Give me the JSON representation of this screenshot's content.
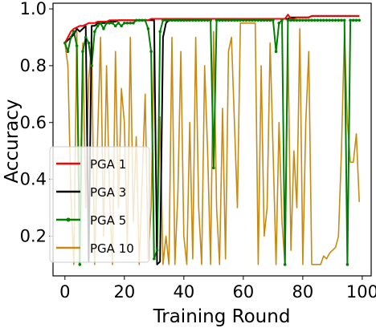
{
  "chart_data": {
    "type": "line",
    "title": "",
    "xlabel": "Training Round",
    "ylabel": "Accuracy",
    "xlim": [
      -4,
      103
    ],
    "ylim": [
      0.06,
      1.02
    ],
    "xticks": [
      0,
      20,
      40,
      60,
      80,
      100
    ],
    "yticks": [
      0.2,
      0.4,
      0.6,
      0.8,
      1.0
    ],
    "xtick_labels": [
      "0",
      "20",
      "40",
      "60",
      "80",
      "100"
    ],
    "ytick_labels": [
      "0.2",
      "0.4",
      "0.6",
      "0.8",
      "1.0"
    ],
    "grid": false,
    "legend": {
      "placement": "lower-left"
    },
    "series": [
      {
        "name": "PGA 1",
        "color": "#ff0000",
        "marker": false,
        "x": [
          0,
          1,
          2,
          3,
          4,
          5,
          6,
          7,
          8,
          9,
          10,
          11,
          12,
          13,
          14,
          15,
          16,
          17,
          18,
          19,
          20,
          21,
          22,
          23,
          24,
          25,
          26,
          27,
          28,
          29,
          30,
          31,
          32,
          33,
          34,
          35,
          36,
          37,
          38,
          39,
          40,
          41,
          42,
          43,
          44,
          45,
          46,
          47,
          48,
          49,
          50,
          51,
          52,
          53,
          54,
          55,
          56,
          57,
          58,
          59,
          60,
          61,
          62,
          63,
          64,
          65,
          66,
          67,
          68,
          69,
          70,
          71,
          72,
          73,
          74,
          75,
          76,
          77,
          78,
          79,
          80,
          81,
          82,
          83,
          84,
          85,
          86,
          87,
          88,
          89,
          90,
          91,
          92,
          93,
          94,
          95,
          96,
          97,
          98,
          99
        ],
        "y": [
          0.88,
          0.9,
          0.92,
          0.93,
          0.935,
          0.94,
          0.94,
          0.945,
          0.95,
          0.95,
          0.95,
          0.955,
          0.955,
          0.955,
          0.955,
          0.96,
          0.96,
          0.96,
          0.96,
          0.96,
          0.96,
          0.96,
          0.96,
          0.96,
          0.96,
          0.96,
          0.96,
          0.96,
          0.96,
          0.965,
          0.965,
          0.965,
          0.965,
          0.965,
          0.965,
          0.965,
          0.965,
          0.965,
          0.965,
          0.965,
          0.965,
          0.965,
          0.965,
          0.965,
          0.965,
          0.965,
          0.965,
          0.965,
          0.965,
          0.965,
          0.965,
          0.965,
          0.965,
          0.965,
          0.965,
          0.965,
          0.965,
          0.965,
          0.965,
          0.965,
          0.965,
          0.965,
          0.965,
          0.965,
          0.965,
          0.965,
          0.965,
          0.965,
          0.965,
          0.965,
          0.965,
          0.965,
          0.965,
          0.965,
          0.965,
          0.98,
          0.965,
          0.965,
          0.97,
          0.97,
          0.97,
          0.97,
          0.97,
          0.975,
          0.975,
          0.975,
          0.975,
          0.975,
          0.975,
          0.975,
          0.975,
          0.975,
          0.975,
          0.975,
          0.975,
          0.975,
          0.975,
          0.975,
          0.975,
          0.975
        ]
      },
      {
        "name": "PGA 3",
        "color": "#000000",
        "marker": false,
        "x": [
          0,
          1,
          2,
          3,
          4,
          5,
          6,
          7,
          8,
          9,
          10,
          11,
          12,
          13,
          14,
          15,
          16,
          17,
          18,
          19,
          20,
          21,
          22,
          23,
          24,
          25,
          26,
          27,
          28,
          29,
          30,
          31,
          32,
          33,
          34,
          35,
          36,
          37,
          38,
          39,
          40,
          41,
          42,
          43,
          44,
          45,
          46,
          47,
          48,
          49,
          50,
          51,
          52,
          53,
          54,
          55,
          56,
          57,
          58,
          59,
          60,
          61,
          62,
          63,
          64,
          65,
          66,
          67,
          68,
          69,
          70,
          71,
          72,
          73,
          74,
          75,
          76,
          77,
          78,
          79,
          80,
          81,
          82,
          83,
          84,
          85,
          86,
          87,
          88,
          89,
          90,
          91,
          92,
          93,
          94,
          95,
          96,
          97,
          98,
          99
        ],
        "y": [
          0.88,
          0.89,
          0.9,
          0.91,
          0.93,
          0.92,
          0.93,
          0.94,
          0.11,
          0.94,
          0.94,
          0.95,
          0.95,
          0.95,
          0.95,
          0.955,
          0.955,
          0.955,
          0.96,
          0.96,
          0.96,
          0.96,
          0.96,
          0.96,
          0.96,
          0.96,
          0.96,
          0.96,
          0.96,
          0.96,
          0.96,
          0.1,
          0.11,
          0.9,
          0.95,
          0.96,
          0.96,
          0.96,
          0.96,
          0.96,
          0.96,
          0.96,
          0.96,
          0.965,
          0.965,
          0.965,
          0.965,
          0.965,
          0.965,
          0.965,
          0.965,
          0.965,
          0.965,
          0.965,
          0.965,
          0.965,
          0.965,
          0.965,
          0.965,
          0.965,
          0.965,
          0.965,
          0.965,
          0.965,
          0.965,
          0.965,
          0.965,
          0.965,
          0.965,
          0.965,
          0.965,
          0.965,
          0.965,
          0.965,
          0.965,
          0.965,
          0.97,
          0.97,
          0.97,
          0.97,
          0.97,
          0.97,
          0.97,
          0.975,
          0.975,
          0.975,
          0.975,
          0.975,
          0.975,
          0.975,
          0.975,
          0.975,
          0.975,
          0.975,
          0.975,
          0.975,
          0.975,
          0.975,
          0.975,
          0.975
        ]
      },
      {
        "name": "PGA 5",
        "color": "#008000",
        "marker": true,
        "x": [
          0,
          1,
          2,
          3,
          4,
          5,
          6,
          7,
          8,
          9,
          10,
          11,
          12,
          13,
          14,
          15,
          16,
          17,
          18,
          19,
          20,
          21,
          22,
          23,
          24,
          25,
          26,
          27,
          28,
          29,
          30,
          31,
          32,
          33,
          34,
          35,
          36,
          37,
          38,
          39,
          40,
          41,
          42,
          43,
          44,
          45,
          46,
          47,
          48,
          49,
          50,
          51,
          52,
          53,
          54,
          55,
          56,
          57,
          58,
          59,
          60,
          61,
          62,
          63,
          64,
          65,
          66,
          67,
          68,
          69,
          70,
          71,
          72,
          73,
          74,
          75,
          76,
          77,
          78,
          79,
          80,
          81,
          82,
          83,
          84,
          85,
          86,
          87,
          88,
          89,
          90,
          91,
          92,
          93,
          94,
          95,
          96,
          97,
          98,
          99
        ],
        "y": [
          0.88,
          0.85,
          0.9,
          0.92,
          0.87,
          0.1,
          0.85,
          0.9,
          0.88,
          0.8,
          0.92,
          0.94,
          0.95,
          0.93,
          0.95,
          0.95,
          0.95,
          0.94,
          0.95,
          0.94,
          0.95,
          0.95,
          0.95,
          0.95,
          0.96,
          0.96,
          0.96,
          0.96,
          0.93,
          0.85,
          0.12,
          0.15,
          0.92,
          0.96,
          0.96,
          0.96,
          0.96,
          0.96,
          0.96,
          0.96,
          0.96,
          0.96,
          0.96,
          0.96,
          0.96,
          0.96,
          0.96,
          0.96,
          0.96,
          0.96,
          0.44,
          0.96,
          0.96,
          0.96,
          0.96,
          0.96,
          0.96,
          0.96,
          0.96,
          0.96,
          0.96,
          0.96,
          0.96,
          0.96,
          0.96,
          0.96,
          0.96,
          0.96,
          0.96,
          0.96,
          0.96,
          0.85,
          0.95,
          0.96,
          0.1,
          0.96,
          0.96,
          0.96,
          0.96,
          0.96,
          0.96,
          0.96,
          0.96,
          0.96,
          0.96,
          0.96,
          0.96,
          0.96,
          0.96,
          0.96,
          0.96,
          0.96,
          0.96,
          0.96,
          0.96,
          0.1,
          0.96,
          0.96,
          0.96,
          0.96
        ]
      },
      {
        "name": "PGA 10",
        "color": "#c88a14",
        "marker": false,
        "x": [
          0,
          1,
          2,
          3,
          4,
          5,
          6,
          7,
          8,
          9,
          10,
          11,
          12,
          13,
          14,
          15,
          16,
          17,
          18,
          19,
          20,
          21,
          22,
          23,
          24,
          25,
          26,
          27,
          28,
          29,
          30,
          31,
          32,
          33,
          34,
          35,
          36,
          37,
          38,
          39,
          40,
          41,
          42,
          43,
          44,
          45,
          46,
          47,
          48,
          49,
          50,
          51,
          52,
          53,
          54,
          55,
          56,
          57,
          58,
          59,
          60,
          61,
          62,
          63,
          64,
          65,
          66,
          67,
          68,
          69,
          70,
          71,
          72,
          73,
          74,
          75,
          76,
          77,
          78,
          79,
          80,
          81,
          82,
          83,
          84,
          85,
          86,
          87,
          88,
          89,
          90,
          91,
          92,
          93,
          94,
          95,
          96,
          97,
          98,
          99
        ],
        "y": [
          0.88,
          0.8,
          0.35,
          0.1,
          0.92,
          0.2,
          0.88,
          0.3,
          0.75,
          0.88,
          0.1,
          0.55,
          0.9,
          0.2,
          0.8,
          0.35,
          0.1,
          0.85,
          0.3,
          0.72,
          0.6,
          0.15,
          0.9,
          0.25,
          0.55,
          0.1,
          0.4,
          0.7,
          0.12,
          0.3,
          0.85,
          0.12,
          0.62,
          0.1,
          0.2,
          0.1,
          0.9,
          0.1,
          0.35,
          0.85,
          0.2,
          0.1,
          0.6,
          0.12,
          0.9,
          0.3,
          0.1,
          0.8,
          0.5,
          0.1,
          0.92,
          0.3,
          0.1,
          0.65,
          0.12,
          0.85,
          0.9,
          0.6,
          0.3,
          0.95,
          0.95,
          0.95,
          0.95,
          0.95,
          0.95,
          0.1,
          0.8,
          0.2,
          0.3,
          0.88,
          0.5,
          0.1,
          0.6,
          0.25,
          0.1,
          0.88,
          0.15,
          0.5,
          0.3,
          0.93,
          0.1,
          0.6,
          0.85,
          0.1,
          0.1,
          0.1,
          0.1,
          0.13,
          0.12,
          0.14,
          0.15,
          0.16,
          0.2,
          0.5,
          0.92,
          0.6,
          0.46,
          0.46,
          0.56,
          0.32
        ]
      }
    ]
  }
}
